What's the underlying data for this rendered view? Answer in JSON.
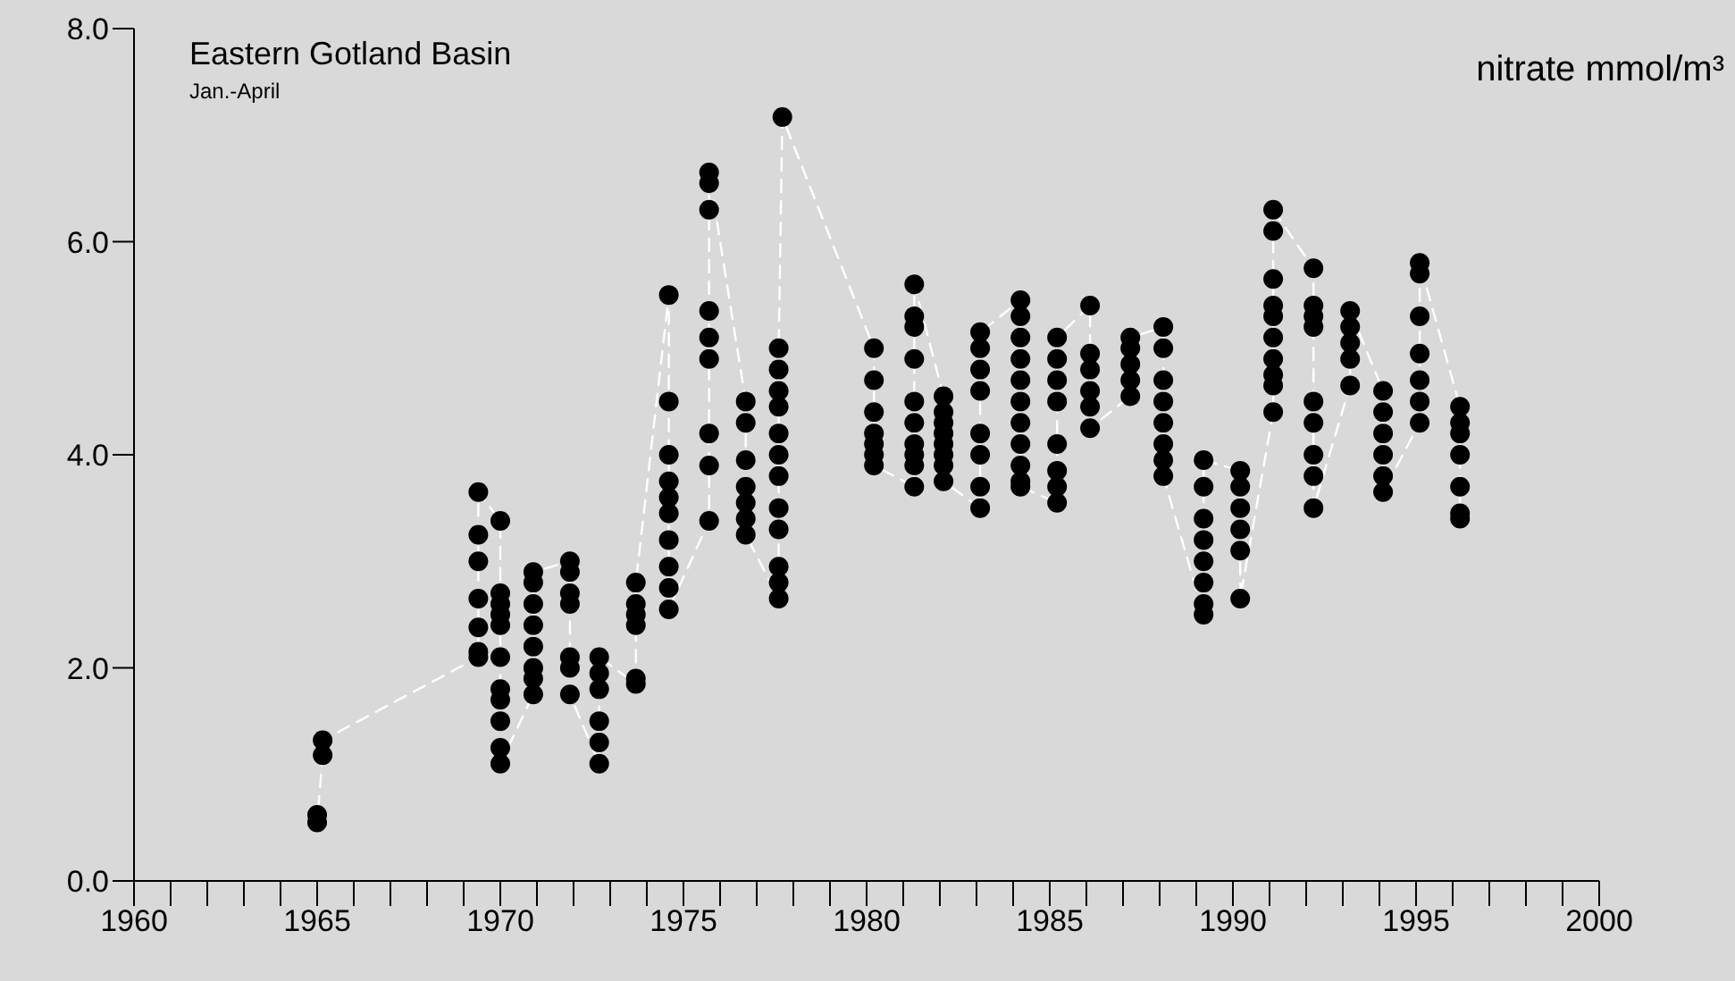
{
  "chart_data": {
    "type": "scatter",
    "title": "Eastern Gotland Basin",
    "subtitle": "Jan.-April",
    "ylabel": "nitrate mmol/m³",
    "x": [
      1965.0,
      1965.0,
      1965.15,
      1965.15,
      1969.4,
      1969.4,
      1969.4,
      1969.4,
      1969.4,
      1969.4,
      1969.4,
      1970.0,
      1970.0,
      1970.0,
      1970.0,
      1970.0,
      1970.0,
      1970.0,
      1970.0,
      1970.0,
      1970.0,
      1970.0,
      1970.9,
      1970.9,
      1970.9,
      1970.9,
      1970.9,
      1970.9,
      1970.9,
      1970.9,
      1971.9,
      1971.9,
      1971.9,
      1971.9,
      1971.9,
      1971.9,
      1971.9,
      1972.7,
      1972.7,
      1972.7,
      1972.7,
      1972.7,
      1972.7,
      1973.7,
      1973.7,
      1973.7,
      1973.7,
      1973.7,
      1973.7,
      1974.6,
      1974.6,
      1974.6,
      1974.6,
      1974.6,
      1974.6,
      1974.6,
      1974.6,
      1974.6,
      1974.6,
      1975.7,
      1975.7,
      1975.7,
      1975.7,
      1975.7,
      1975.7,
      1975.7,
      1975.7,
      1975.7,
      1976.7,
      1976.7,
      1976.7,
      1976.7,
      1976.7,
      1976.7,
      1976.7,
      1977.6,
      1977.6,
      1977.6,
      1977.6,
      1977.6,
      1977.6,
      1977.6,
      1977.6,
      1977.6,
      1977.6,
      1977.6,
      1977.6,
      1977.7,
      1980.2,
      1980.2,
      1980.2,
      1980.2,
      1980.2,
      1980.2,
      1980.2,
      1981.3,
      1981.3,
      1981.3,
      1981.3,
      1981.3,
      1981.3,
      1981.3,
      1981.3,
      1981.3,
      1981.3,
      1982.1,
      1982.1,
      1982.1,
      1982.1,
      1982.1,
      1982.1,
      1982.1,
      1982.1,
      1983.1,
      1983.1,
      1983.1,
      1983.1,
      1983.1,
      1983.1,
      1983.1,
      1983.1,
      1984.2,
      1984.2,
      1984.2,
      1984.2,
      1984.2,
      1984.2,
      1984.2,
      1984.2,
      1984.2,
      1984.2,
      1984.2,
      1985.2,
      1985.2,
      1985.2,
      1985.2,
      1985.2,
      1985.2,
      1985.2,
      1985.2,
      1986.1,
      1986.1,
      1986.1,
      1986.1,
      1986.1,
      1986.1,
      1987.2,
      1987.2,
      1987.2,
      1987.2,
      1987.2,
      1988.1,
      1988.1,
      1988.1,
      1988.1,
      1988.1,
      1988.1,
      1988.1,
      1988.1,
      1989.2,
      1989.2,
      1989.2,
      1989.2,
      1989.2,
      1989.2,
      1989.2,
      1989.2,
      1990.2,
      1990.2,
      1990.2,
      1990.2,
      1990.2,
      1990.2,
      1991.1,
      1991.1,
      1991.1,
      1991.1,
      1991.1,
      1991.1,
      1991.1,
      1991.1,
      1991.1,
      1991.1,
      1992.2,
      1992.2,
      1992.2,
      1992.2,
      1992.2,
      1992.2,
      1992.2,
      1992.2,
      1992.2,
      1993.2,
      1993.2,
      1993.2,
      1993.2,
      1993.2,
      1994.1,
      1994.1,
      1994.1,
      1994.1,
      1994.1,
      1994.1,
      1995.1,
      1995.1,
      1995.1,
      1995.1,
      1995.1,
      1995.1,
      1995.1,
      1996.2,
      1996.2,
      1996.2,
      1996.2,
      1996.2,
      1996.2,
      1996.2
    ],
    "series": [
      {
        "type": "line",
        "color": "#ffffff",
        "line_style": "dashed",
        "marker": "none",
        "values": [
          0.62,
          0.55,
          1.18,
          1.32,
          2.1,
          2.15,
          2.38,
          2.65,
          3.0,
          3.25,
          3.65,
          3.38,
          2.7,
          2.6,
          2.5,
          2.4,
          2.1,
          1.8,
          1.7,
          1.5,
          1.25,
          1.1,
          1.75,
          1.9,
          2.0,
          2.2,
          2.4,
          2.6,
          2.8,
          2.9,
          3.0,
          2.9,
          2.7,
          2.6,
          2.1,
          2.0,
          1.75,
          1.1,
          1.3,
          1.5,
          1.8,
          1.95,
          2.1,
          1.85,
          1.9,
          2.4,
          2.5,
          2.6,
          2.8,
          5.5,
          4.5,
          4.0,
          3.75,
          3.6,
          3.45,
          3.2,
          2.95,
          2.75,
          2.55,
          3.38,
          3.9,
          4.2,
          4.9,
          5.1,
          5.35,
          6.3,
          6.55,
          6.65,
          4.5,
          4.3,
          3.95,
          3.7,
          3.55,
          3.4,
          3.25,
          2.65,
          2.8,
          2.95,
          3.3,
          3.5,
          3.8,
          4.0,
          4.2,
          4.45,
          4.6,
          4.8,
          5.0,
          7.17,
          5.0,
          4.7,
          4.4,
          4.2,
          4.1,
          4.0,
          3.9,
          3.7,
          3.9,
          4.0,
          4.1,
          4.3,
          4.5,
          4.9,
          5.2,
          5.3,
          5.6,
          4.55,
          4.4,
          4.3,
          4.2,
          4.1,
          4.0,
          3.9,
          3.75,
          3.5,
          3.7,
          4.0,
          4.2,
          4.6,
          4.8,
          5.0,
          5.15,
          5.45,
          5.3,
          5.1,
          4.9,
          4.7,
          4.5,
          4.3,
          4.1,
          3.9,
          3.75,
          3.7,
          3.55,
          3.7,
          3.85,
          4.1,
          4.5,
          4.7,
          4.9,
          5.1,
          5.4,
          4.95,
          4.8,
          4.6,
          4.45,
          4.25,
          4.55,
          4.7,
          4.85,
          5.0,
          5.1,
          5.2,
          5.0,
          4.7,
          4.5,
          4.3,
          4.1,
          3.95,
          3.8,
          2.5,
          2.6,
          2.8,
          3.0,
          3.2,
          3.4,
          3.7,
          3.95,
          3.85,
          3.7,
          3.5,
          3.3,
          3.1,
          2.65,
          4.4,
          4.65,
          4.75,
          4.9,
          5.1,
          5.3,
          5.4,
          5.65,
          6.1,
          6.3,
          5.75,
          5.4,
          5.3,
          5.2,
          4.5,
          4.3,
          4.0,
          3.8,
          3.5,
          4.65,
          4.9,
          5.05,
          5.2,
          5.35,
          4.6,
          4.4,
          4.2,
          4.0,
          3.8,
          3.65,
          4.3,
          4.5,
          4.7,
          4.95,
          5.3,
          5.7,
          5.8,
          4.45,
          4.3,
          4.2,
          4.0,
          3.7,
          3.45,
          3.4
        ]
      },
      {
        "color": "#000000",
        "marker": "circle",
        "values": [
          0.62,
          0.55,
          1.18,
          1.32,
          2.1,
          2.15,
          2.38,
          2.65,
          3.0,
          3.25,
          3.65,
          3.38,
          2.7,
          2.6,
          2.5,
          2.4,
          2.1,
          1.8,
          1.7,
          1.5,
          1.25,
          1.1,
          1.75,
          1.9,
          2.0,
          2.2,
          2.4,
          2.6,
          2.8,
          2.9,
          3.0,
          2.9,
          2.7,
          2.6,
          2.1,
          2.0,
          1.75,
          1.1,
          1.3,
          1.5,
          1.8,
          1.95,
          2.1,
          1.85,
          1.9,
          2.4,
          2.5,
          2.6,
          2.8,
          5.5,
          4.5,
          4.0,
          3.75,
          3.6,
          3.45,
          3.2,
          2.95,
          2.75,
          2.55,
          3.38,
          3.9,
          4.2,
          4.9,
          5.1,
          5.35,
          6.3,
          6.55,
          6.65,
          4.5,
          4.3,
          3.95,
          3.7,
          3.55,
          3.4,
          3.25,
          2.65,
          2.8,
          2.95,
          3.3,
          3.5,
          3.8,
          4.0,
          4.2,
          4.45,
          4.6,
          4.8,
          5.0,
          7.17,
          5.0,
          4.7,
          4.4,
          4.2,
          4.1,
          4.0,
          3.9,
          3.7,
          3.9,
          4.0,
          4.1,
          4.3,
          4.5,
          4.9,
          5.2,
          5.3,
          5.6,
          4.55,
          4.4,
          4.3,
          4.2,
          4.1,
          4.0,
          3.9,
          3.75,
          3.5,
          3.7,
          4.0,
          4.2,
          4.6,
          4.8,
          5.0,
          5.15,
          5.45,
          5.3,
          5.1,
          4.9,
          4.7,
          4.5,
          4.3,
          4.1,
          3.9,
          3.75,
          3.7,
          3.55,
          3.7,
          3.85,
          4.1,
          4.5,
          4.7,
          4.9,
          5.1,
          5.4,
          4.95,
          4.8,
          4.6,
          4.45,
          4.25,
          4.55,
          4.7,
          4.85,
          5.0,
          5.1,
          5.2,
          5.0,
          4.7,
          4.5,
          4.3,
          4.1,
          3.95,
          3.8,
          2.5,
          2.6,
          2.8,
          3.0,
          3.2,
          3.4,
          3.7,
          3.95,
          3.85,
          3.7,
          3.5,
          3.3,
          3.1,
          2.65,
          4.4,
          4.65,
          4.75,
          4.9,
          5.1,
          5.3,
          5.4,
          5.65,
          6.1,
          6.3,
          5.75,
          5.4,
          5.3,
          5.2,
          4.5,
          4.3,
          4.0,
          3.8,
          3.5,
          4.65,
          4.9,
          5.05,
          5.2,
          5.35,
          4.6,
          4.4,
          4.2,
          4.0,
          3.8,
          3.65,
          4.3,
          4.5,
          4.7,
          4.95,
          5.3,
          5.7,
          5.8,
          4.45,
          4.3,
          4.2,
          4.0,
          3.7,
          3.45,
          3.4
        ]
      }
    ],
    "xlim": [
      1960,
      2000
    ],
    "xticks": [
      1960,
      {
        "value": 1961,
        "label": null
      },
      {
        "value": 1962,
        "label": null
      },
      {
        "value": 1963,
        "label": null
      },
      {
        "value": 1964,
        "label": null
      },
      1965,
      {
        "value": 1966,
        "label": null
      },
      {
        "value": 1967,
        "label": null
      },
      {
        "value": 1968,
        "label": null
      },
      {
        "value": 1969,
        "label": null
      },
      1970,
      {
        "value": 1971,
        "label": null
      },
      {
        "value": 1972,
        "label": null
      },
      {
        "value": 1973,
        "label": null
      },
      {
        "value": 1974,
        "label": null
      },
      1975,
      {
        "value": 1976,
        "label": null
      },
      {
        "value": 1977,
        "label": null
      },
      {
        "value": 1978,
        "label": null
      },
      {
        "value": 1979,
        "label": null
      },
      1980,
      {
        "value": 1981,
        "label": null
      },
      {
        "value": 1982,
        "label": null
      },
      {
        "value": 1983,
        "label": null
      },
      {
        "value": 1984,
        "label": null
      },
      1985,
      {
        "value": 1986,
        "label": null
      },
      {
        "value": 1987,
        "label": null
      },
      {
        "value": 1988,
        "label": null
      },
      {
        "value": 1989,
        "label": null
      },
      1990,
      {
        "value": 1991,
        "label": null
      },
      {
        "value": 1992,
        "label": null
      },
      {
        "value": 1993,
        "label": null
      },
      {
        "value": 1994,
        "label": null
      },
      1995,
      {
        "value": 1996,
        "label": null
      },
      {
        "value": 1997,
        "label": null
      },
      {
        "value": 1998,
        "label": null
      },
      {
        "value": 1999,
        "label": null
      },
      2000
    ],
    "ylim": [
      0,
      8
    ],
    "yticks": [
      {
        "value": 0,
        "label": "0.0"
      },
      {
        "value": 2,
        "label": "2.0"
      },
      {
        "value": 4,
        "label": "4.0"
      },
      {
        "value": 6,
        "label": "6.0"
      },
      {
        "value": 8,
        "label": "8.0"
      }
    ],
    "grid": false,
    "legend": false
  }
}
